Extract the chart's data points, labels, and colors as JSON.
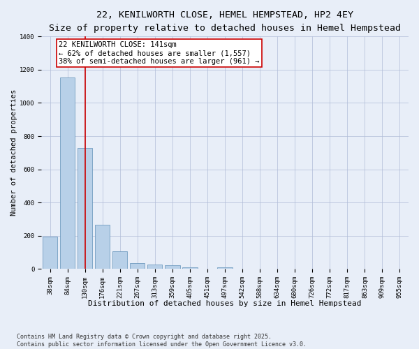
{
  "title1": "22, KENILWORTH CLOSE, HEMEL HEMPSTEAD, HP2 4EY",
  "title2": "Size of property relative to detached houses in Hemel Hempstead",
  "xlabel": "Distribution of detached houses by size in Hemel Hempstead",
  "ylabel": "Number of detached properties",
  "categories": [
    "38sqm",
    "84sqm",
    "130sqm",
    "176sqm",
    "221sqm",
    "267sqm",
    "313sqm",
    "359sqm",
    "405sqm",
    "451sqm",
    "497sqm",
    "542sqm",
    "588sqm",
    "634sqm",
    "680sqm",
    "726sqm",
    "772sqm",
    "817sqm",
    "863sqm",
    "909sqm",
    "955sqm"
  ],
  "values": [
    193,
    1155,
    727,
    265,
    105,
    35,
    28,
    20,
    8,
    0,
    10,
    0,
    0,
    0,
    0,
    0,
    0,
    0,
    0,
    0,
    0
  ],
  "bar_color": "#b8d0e8",
  "bar_edge_color": "#6090b8",
  "vline_x_index": 2,
  "vline_color": "#cc0000",
  "annotation_text": "22 KENILWORTH CLOSE: 141sqm\n← 62% of detached houses are smaller (1,557)\n38% of semi-detached houses are larger (961) →",
  "annotation_box_color": "#ffffff",
  "annotation_edge_color": "#cc0000",
  "ylim": [
    0,
    1400
  ],
  "yticks": [
    0,
    200,
    400,
    600,
    800,
    1000,
    1200,
    1400
  ],
  "bg_color": "#e8eef8",
  "plot_bg_color": "#e8eef8",
  "footer": "Contains HM Land Registry data © Crown copyright and database right 2025.\nContains public sector information licensed under the Open Government Licence v3.0.",
  "title1_fontsize": 9.5,
  "title2_fontsize": 8.5,
  "xlabel_fontsize": 8,
  "ylabel_fontsize": 7.5,
  "tick_fontsize": 6.5,
  "annotation_fontsize": 7.5,
  "footer_fontsize": 6
}
